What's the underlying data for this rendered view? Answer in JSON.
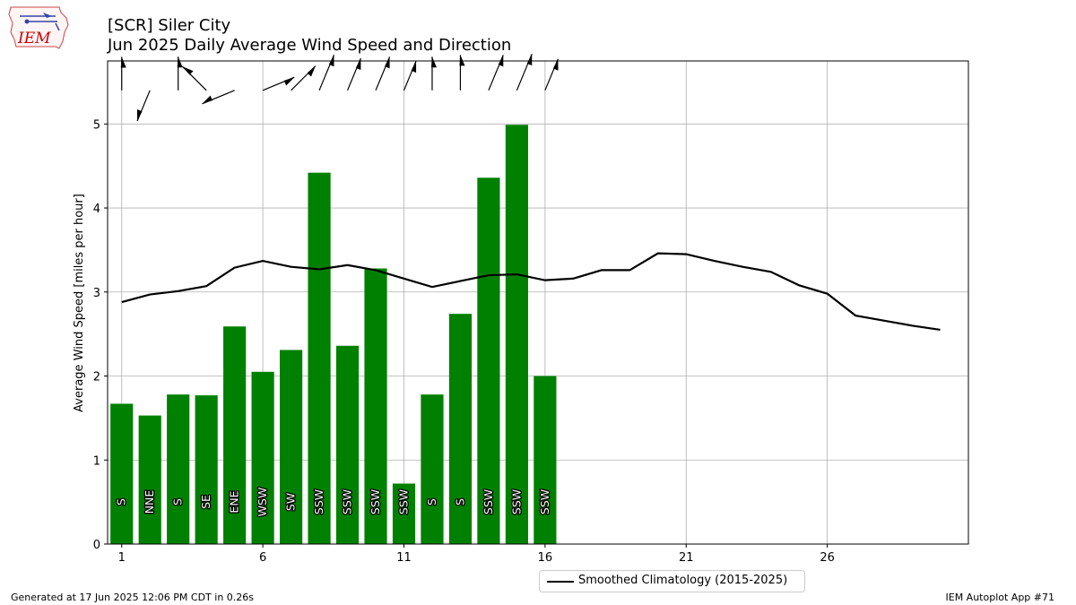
{
  "header": {
    "line1": "[SCR] Siler City",
    "line2": "Jun 2025 Daily Average Wind Speed and Direction"
  },
  "logo": {
    "text": "IEM",
    "color": "#cc0000"
  },
  "footer": {
    "left": "Generated at 17 Jun 2025 12:06 PM CDT in 0.26s",
    "right": "IEM Autoplot App #71"
  },
  "legend": {
    "label": "Smoothed Climatology (2015-2025)"
  },
  "chart_data": {
    "type": "bar",
    "ylabel": "Average Wind Speed [miles per hour]",
    "xlim": [
      0.5,
      31
    ],
    "ylim": [
      0,
      5.75
    ],
    "xticks": [
      1,
      6,
      11,
      16,
      21,
      26
    ],
    "yticks": [
      0,
      1,
      2,
      3,
      4,
      5
    ],
    "grid": true,
    "legend_position": "bottom-center",
    "bar_color": "#008000",
    "days": [
      1,
      2,
      3,
      4,
      5,
      6,
      7,
      8,
      9,
      10,
      11,
      12,
      13,
      14,
      15,
      16
    ],
    "values": [
      1.67,
      1.53,
      1.78,
      1.77,
      2.59,
      2.05,
      2.31,
      4.42,
      2.36,
      3.28,
      0.72,
      1.78,
      2.74,
      4.36,
      4.99,
      2.0
    ],
    "directions": [
      "S",
      "NNE",
      "S",
      "SE",
      "ENE",
      "WSW",
      "SW",
      "SSW",
      "SSW",
      "SSW",
      "SSW",
      "S",
      "S",
      "SSW",
      "SSW",
      "SSW"
    ],
    "series": [
      {
        "name": "Smoothed Climatology (2015-2025)",
        "x": [
          1,
          2,
          3,
          4,
          5,
          6,
          7,
          8,
          9,
          10,
          11,
          12,
          13,
          14,
          15,
          16,
          17,
          18,
          19,
          20,
          21,
          22,
          23,
          24,
          25,
          26,
          27,
          28,
          29,
          30
        ],
        "values": [
          2.88,
          2.97,
          3.01,
          3.07,
          3.29,
          3.37,
          3.3,
          3.27,
          3.32,
          3.26,
          3.16,
          3.06,
          3.13,
          3.2,
          3.21,
          3.14,
          3.16,
          3.26,
          3.26,
          3.46,
          3.45,
          3.37,
          3.3,
          3.24,
          3.08,
          2.98,
          2.72,
          2.66,
          2.6,
          2.55
        ]
      }
    ]
  }
}
